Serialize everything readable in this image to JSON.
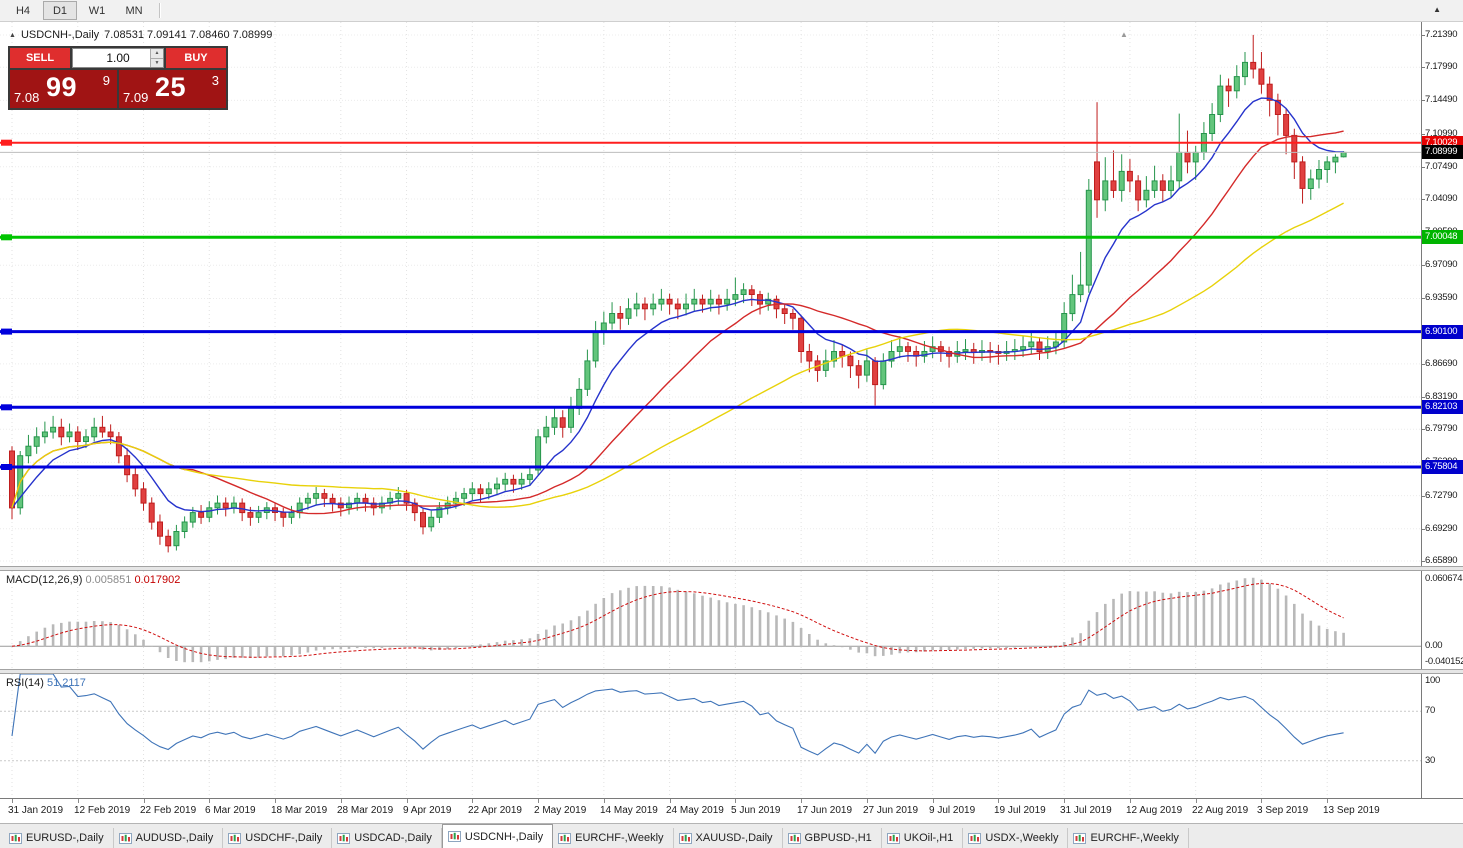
{
  "toolbar": {
    "periods": [
      "H4",
      "D1",
      "W1",
      "MN"
    ],
    "active": "D1"
  },
  "icons": {
    "title_arrow": "▲",
    "collapse_arrow": "▲",
    "toolbar_arrow": "▲",
    "volume_up": "▲",
    "volume_down": "▼"
  },
  "chart": {
    "title_symbol": "USDCNH-,Daily",
    "title_ohlc": "7.08531 7.09141 7.08460 7.08999"
  },
  "trade_panel": {
    "sell_label": "SELL",
    "buy_label": "BUY",
    "volume": "1.00",
    "bid_small": "7.08",
    "bid_big": "99",
    "bid_sup": "9",
    "ask_small": "7.09",
    "ask_big": "25",
    "ask_sup": "3"
  },
  "price_axis": {
    "labels": [
      "7.21390",
      "7.17990",
      "7.14490",
      "7.10990",
      "7.07490",
      "7.04090",
      "7.00590",
      "6.97090",
      "6.93590",
      "6.90190",
      "6.86690",
      "6.83190",
      "6.79790",
      "6.76290",
      "6.72790",
      "6.69290",
      "6.65890"
    ]
  },
  "colors": {
    "up_fill": "#63c57c",
    "up_stroke": "#26954c",
    "down_fill": "#e04040",
    "down_stroke": "#bf1d1d",
    "ma_fast": "#2633cc",
    "ma_mid": "#d42a2a",
    "ma_slow": "#e8d20a",
    "macd_hist": "#b9b9b9",
    "macd_signal": "#d01010",
    "rsi_line": "#3f74b8"
  },
  "chart_data": {
    "type": "candlestick",
    "symbol": "USDCNH-",
    "timeframe": "Daily",
    "price_range": {
      "top": 7.2139,
      "bottom": 6.6589
    },
    "hlines": [
      {
        "price": 7.10029,
        "label": "7.10029",
        "color": "#ff1e1e",
        "width": 2,
        "badge_bg": "#e60000"
      },
      {
        "price": 7.08999,
        "label": "7.08999",
        "color": "#bdbdbd",
        "width": 1,
        "badge_bg": "#000000",
        "is_bid": true
      },
      {
        "price": 7.00048,
        "label": "7.00048",
        "color": "#00c400",
        "width": 3,
        "badge_bg": "#00b400"
      },
      {
        "price": 6.901,
        "label": "6.90100",
        "color": "#0000dc",
        "width": 3,
        "badge_bg": "#0000cc"
      },
      {
        "price": 6.82103,
        "label": "6.82103",
        "color": "#0000dc",
        "width": 3,
        "badge_bg": "#0000cc"
      },
      {
        "price": 6.75804,
        "label": "6.75804",
        "color": "#0000dc",
        "width": 3,
        "badge_bg": "#0000cc"
      }
    ],
    "moving_averages": [
      {
        "type": "ema",
        "period": 9,
        "color_key": "ma_fast"
      },
      {
        "type": "sma",
        "period": 22,
        "color_key": "ma_mid"
      },
      {
        "type": "sma",
        "period": 45,
        "color_key": "ma_slow"
      }
    ],
    "x_labels": [
      {
        "text": "31 Jan 2019",
        "i": 0
      },
      {
        "text": "12 Feb 2019",
        "i": 8
      },
      {
        "text": "22 Feb 2019",
        "i": 16
      },
      {
        "text": "6 Mar 2019",
        "i": 24
      },
      {
        "text": "18 Mar 2019",
        "i": 32
      },
      {
        "text": "28 Mar 2019",
        "i": 40
      },
      {
        "text": "9 Apr 2019",
        "i": 48
      },
      {
        "text": "22 Apr 2019",
        "i": 56
      },
      {
        "text": "2 May 2019",
        "i": 64
      },
      {
        "text": "14 May 2019",
        "i": 72
      },
      {
        "text": "24 May 2019",
        "i": 80
      },
      {
        "text": "5 Jun 2019",
        "i": 88
      },
      {
        "text": "17 Jun 2019",
        "i": 96
      },
      {
        "text": "27 Jun 2019",
        "i": 104
      },
      {
        "text": "9 Jul 2019",
        "i": 112
      },
      {
        "text": "19 Jul 2019",
        "i": 120
      },
      {
        "text": "31 Jul 2019",
        "i": 128
      },
      {
        "text": "12 Aug 2019",
        "i": 136
      },
      {
        "text": "22 Aug 2019",
        "i": 144
      },
      {
        "text": "3 Sep 2019",
        "i": 152
      },
      {
        "text": "13 Sep 2019",
        "i": 160
      }
    ],
    "candles": [
      [
        6.775,
        6.78,
        6.703,
        6.715
      ],
      [
        6.715,
        6.775,
        6.708,
        6.77
      ],
      [
        6.77,
        6.792,
        6.762,
        6.78
      ],
      [
        6.78,
        6.8,
        6.772,
        6.79
      ],
      [
        6.79,
        6.806,
        6.783,
        6.795
      ],
      [
        6.795,
        6.812,
        6.788,
        6.8
      ],
      [
        6.8,
        6.809,
        6.781,
        6.79
      ],
      [
        6.79,
        6.804,
        6.784,
        6.795
      ],
      [
        6.795,
        6.801,
        6.776,
        6.785
      ],
      [
        6.785,
        6.798,
        6.778,
        6.79
      ],
      [
        6.79,
        6.81,
        6.785,
        6.8
      ],
      [
        6.8,
        6.812,
        6.789,
        6.795
      ],
      [
        6.795,
        6.803,
        6.782,
        6.79
      ],
      [
        6.79,
        6.795,
        6.762,
        6.77
      ],
      [
        6.77,
        6.778,
        6.742,
        6.75
      ],
      [
        6.75,
        6.758,
        6.727,
        6.735
      ],
      [
        6.735,
        6.742,
        6.712,
        6.72
      ],
      [
        6.72,
        6.726,
        6.692,
        6.7
      ],
      [
        6.7,
        6.708,
        6.676,
        6.685
      ],
      [
        6.685,
        6.692,
        6.668,
        6.675
      ],
      [
        6.675,
        6.697,
        6.67,
        6.69
      ],
      [
        6.69,
        6.706,
        6.683,
        6.7
      ],
      [
        6.7,
        6.716,
        6.694,
        6.71
      ],
      [
        6.71,
        6.718,
        6.698,
        6.705
      ],
      [
        6.705,
        6.722,
        6.7,
        6.715
      ],
      [
        6.715,
        6.728,
        6.708,
        6.72
      ],
      [
        6.72,
        6.726,
        6.706,
        6.715
      ],
      [
        6.715,
        6.727,
        6.709,
        6.72
      ],
      [
        6.72,
        6.725,
        6.701,
        6.71
      ],
      [
        6.71,
        6.716,
        6.696,
        6.705
      ],
      [
        6.705,
        6.717,
        6.699,
        6.71
      ],
      [
        6.71,
        6.721,
        6.703,
        6.715
      ],
      [
        6.715,
        6.72,
        6.701,
        6.71
      ],
      [
        6.71,
        6.715,
        6.695,
        6.705
      ],
      [
        6.705,
        6.717,
        6.698,
        6.71
      ],
      [
        6.71,
        6.726,
        6.704,
        6.72
      ],
      [
        6.72,
        6.731,
        6.713,
        6.725
      ],
      [
        6.725,
        6.737,
        6.718,
        6.73
      ],
      [
        6.73,
        6.735,
        6.716,
        6.725
      ],
      [
        6.725,
        6.73,
        6.711,
        6.72
      ],
      [
        6.72,
        6.726,
        6.706,
        6.715
      ],
      [
        6.715,
        6.727,
        6.708,
        6.72
      ],
      [
        6.72,
        6.731,
        6.712,
        6.725
      ],
      [
        6.725,
        6.73,
        6.711,
        6.72
      ],
      [
        6.72,
        6.726,
        6.707,
        6.715
      ],
      [
        6.715,
        6.727,
        6.709,
        6.72
      ],
      [
        6.72,
        6.732,
        6.713,
        6.725
      ],
      [
        6.725,
        6.737,
        6.718,
        6.73
      ],
      [
        6.73,
        6.734,
        6.712,
        6.72
      ],
      [
        6.72,
        6.725,
        6.701,
        6.71
      ],
      [
        6.71,
        6.714,
        6.687,
        6.695
      ],
      [
        6.695,
        6.712,
        6.69,
        6.705
      ],
      [
        6.705,
        6.721,
        6.699,
        6.715
      ],
      [
        6.715,
        6.727,
        6.708,
        6.72
      ],
      [
        6.72,
        6.732,
        6.714,
        6.725
      ],
      [
        6.725,
        6.736,
        6.717,
        6.73
      ],
      [
        6.73,
        6.742,
        6.723,
        6.735
      ],
      [
        6.735,
        6.74,
        6.721,
        6.73
      ],
      [
        6.73,
        6.742,
        6.724,
        6.735
      ],
      [
        6.735,
        6.747,
        6.728,
        6.74
      ],
      [
        6.74,
        6.752,
        6.733,
        6.745
      ],
      [
        6.745,
        6.75,
        6.731,
        6.74
      ],
      [
        6.74,
        6.752,
        6.734,
        6.745
      ],
      [
        6.745,
        6.757,
        6.738,
        6.75
      ],
      [
        6.755,
        6.798,
        6.75,
        6.79
      ],
      [
        6.79,
        6.812,
        6.783,
        6.8
      ],
      [
        6.8,
        6.822,
        6.792,
        6.81
      ],
      [
        6.81,
        6.818,
        6.789,
        6.8
      ],
      [
        6.8,
        6.832,
        6.794,
        6.82
      ],
      [
        6.82,
        6.852,
        6.813,
        6.84
      ],
      [
        6.84,
        6.882,
        6.833,
        6.87
      ],
      [
        6.87,
        6.912,
        6.863,
        6.9
      ],
      [
        6.9,
        6.922,
        6.887,
        6.91
      ],
      [
        6.91,
        6.932,
        6.903,
        6.92
      ],
      [
        6.92,
        6.928,
        6.903,
        6.915
      ],
      [
        6.915,
        6.936,
        6.908,
        6.925
      ],
      [
        6.925,
        6.942,
        6.917,
        6.93
      ],
      [
        6.93,
        6.937,
        6.913,
        6.925
      ],
      [
        6.925,
        6.941,
        6.918,
        6.93
      ],
      [
        6.93,
        6.946,
        6.923,
        6.935
      ],
      [
        6.935,
        6.941,
        6.919,
        6.93
      ],
      [
        6.93,
        6.936,
        6.914,
        6.925
      ],
      [
        6.925,
        6.941,
        6.918,
        6.93
      ],
      [
        6.93,
        6.946,
        6.923,
        6.935
      ],
      [
        6.935,
        6.94,
        6.921,
        6.93
      ],
      [
        6.93,
        6.945,
        6.922,
        6.935
      ],
      [
        6.935,
        6.94,
        6.919,
        6.93
      ],
      [
        6.93,
        6.946,
        6.923,
        6.935
      ],
      [
        6.935,
        6.958,
        6.928,
        6.94
      ],
      [
        6.94,
        6.952,
        6.931,
        6.945
      ],
      [
        6.945,
        6.95,
        6.928,
        6.94
      ],
      [
        6.94,
        6.944,
        6.919,
        6.93
      ],
      [
        6.93,
        6.942,
        6.923,
        6.935
      ],
      [
        6.935,
        6.939,
        6.915,
        6.925
      ],
      [
        6.925,
        6.93,
        6.909,
        6.92
      ],
      [
        6.92,
        6.925,
        6.903,
        6.915
      ],
      [
        6.915,
        6.918,
        6.868,
        6.88
      ],
      [
        6.88,
        6.888,
        6.858,
        6.87
      ],
      [
        6.87,
        6.876,
        6.848,
        6.86
      ],
      [
        6.86,
        6.882,
        6.853,
        6.87
      ],
      [
        6.87,
        6.892,
        6.863,
        6.88
      ],
      [
        6.88,
        6.887,
        6.863,
        6.875
      ],
      [
        6.875,
        6.88,
        6.852,
        6.865
      ],
      [
        6.865,
        6.871,
        6.841,
        6.855
      ],
      [
        6.855,
        6.882,
        6.848,
        6.87
      ],
      [
        6.87,
        6.874,
        6.823,
        6.845
      ],
      [
        6.845,
        6.878,
        6.84,
        6.87
      ],
      [
        6.87,
        6.892,
        6.863,
        6.88
      ],
      [
        6.88,
        6.896,
        6.873,
        6.885
      ],
      [
        6.885,
        6.89,
        6.869,
        6.88
      ],
      [
        6.88,
        6.886,
        6.864,
        6.875
      ],
      [
        6.875,
        6.891,
        6.868,
        6.88
      ],
      [
        6.88,
        6.896,
        6.873,
        6.885
      ],
      [
        6.885,
        6.891,
        6.869,
        6.88
      ],
      [
        6.88,
        6.885,
        6.863,
        6.875
      ],
      [
        6.875,
        6.891,
        6.868,
        6.88
      ],
      [
        6.88,
        6.893,
        6.871,
        6.882
      ],
      [
        6.882,
        6.889,
        6.867,
        6.879
      ],
      [
        6.879,
        6.892,
        6.87,
        6.881
      ],
      [
        6.881,
        6.89,
        6.868,
        6.88
      ],
      [
        6.88,
        6.887,
        6.866,
        6.878
      ],
      [
        6.878,
        6.891,
        6.87,
        6.88
      ],
      [
        6.88,
        6.893,
        6.871,
        6.882
      ],
      [
        6.882,
        6.896,
        6.874,
        6.885
      ],
      [
        6.885,
        6.901,
        6.877,
        6.89
      ],
      [
        6.89,
        6.895,
        6.871,
        6.88
      ],
      [
        6.88,
        6.896,
        6.872,
        6.885
      ],
      [
        6.885,
        6.901,
        6.877,
        6.89
      ],
      [
        6.89,
        6.932,
        6.884,
        6.92
      ],
      [
        6.92,
        6.961,
        6.912,
        6.94
      ],
      [
        6.94,
        6.985,
        6.932,
        6.95
      ],
      [
        6.95,
        7.062,
        6.942,
        7.05
      ],
      [
        7.08,
        7.143,
        7.021,
        7.04
      ],
      [
        7.04,
        7.085,
        7.028,
        7.06
      ],
      [
        7.06,
        7.092,
        7.042,
        7.05
      ],
      [
        7.05,
        7.088,
        7.038,
        7.07
      ],
      [
        7.07,
        7.083,
        7.048,
        7.06
      ],
      [
        7.06,
        7.066,
        7.028,
        7.04
      ],
      [
        7.04,
        7.065,
        7.032,
        7.05
      ],
      [
        7.05,
        7.076,
        7.042,
        7.06
      ],
      [
        7.06,
        7.067,
        7.038,
        7.05
      ],
      [
        7.05,
        7.076,
        7.043,
        7.06
      ],
      [
        7.06,
        7.131,
        7.052,
        7.09
      ],
      [
        7.09,
        7.113,
        7.068,
        7.08
      ],
      [
        7.08,
        7.097,
        7.061,
        7.09
      ],
      [
        7.09,
        7.122,
        7.082,
        7.11
      ],
      [
        7.11,
        7.142,
        7.102,
        7.13
      ],
      [
        7.13,
        7.172,
        7.122,
        7.16
      ],
      [
        7.16,
        7.168,
        7.138,
        7.155
      ],
      [
        7.155,
        7.182,
        7.147,
        7.17
      ],
      [
        7.17,
        7.196,
        7.161,
        7.185
      ],
      [
        7.185,
        7.214,
        7.168,
        7.178
      ],
      [
        7.178,
        7.196,
        7.152,
        7.162
      ],
      [
        7.162,
        7.17,
        7.128,
        7.145
      ],
      [
        7.145,
        7.152,
        7.108,
        7.13
      ],
      [
        7.13,
        7.136,
        7.088,
        7.108
      ],
      [
        7.108,
        7.115,
        7.062,
        7.08
      ],
      [
        7.08,
        7.086,
        7.036,
        7.052
      ],
      [
        7.052,
        7.072,
        7.04,
        7.062
      ],
      [
        7.062,
        7.082,
        7.052,
        7.072
      ],
      [
        7.072,
        7.086,
        7.058,
        7.08
      ],
      [
        7.08,
        7.088,
        7.068,
        7.085
      ],
      [
        7.08531,
        7.09141,
        7.0846,
        7.08999
      ]
    ],
    "macd": {
      "label": "MACD(12,26,9)",
      "value_main": "0.005851",
      "value_signal": "0.017902",
      "fast": 12,
      "slow": 26,
      "signal": 9,
      "axis_top": "0.060674",
      "axis_zero": "0.00",
      "axis_bottom": "-0.040152"
    },
    "rsi": {
      "label": "RSI(14)",
      "value": "51.2117",
      "period": 14,
      "levels": [
        70,
        30
      ],
      "axis": [
        "100",
        "70",
        "30"
      ]
    }
  },
  "tabs": [
    {
      "label": "EURUSD-,Daily"
    },
    {
      "label": "AUDUSD-,Daily"
    },
    {
      "label": "USDCHF-,Daily"
    },
    {
      "label": "USDCAD-,Daily"
    },
    {
      "label": "USDCNH-,Daily",
      "active": true
    },
    {
      "label": "EURCHF-,Weekly"
    },
    {
      "label": "XAUUSD-,Daily"
    },
    {
      "label": "GBPUSD-,H1"
    },
    {
      "label": "UKOil-,H1"
    },
    {
      "label": "USDX-,Weekly"
    },
    {
      "label": "EURCHF-,Weekly"
    }
  ]
}
